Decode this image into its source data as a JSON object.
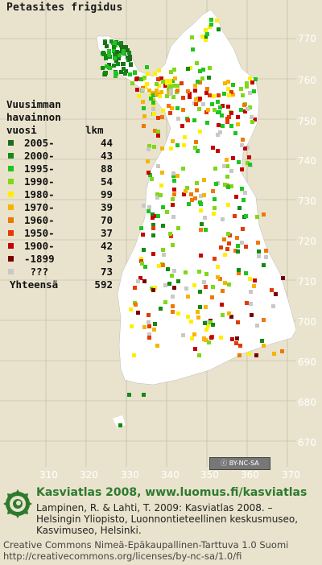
{
  "title": "Petasites frigidus",
  "legend": {
    "heading": [
      "Vuusimman",
      "havainnon"
    ],
    "col_vuosi": "vuosi",
    "col_lkm": "lkm",
    "rows": [
      {
        "label": "2005-",
        "count": "44",
        "color": "#1e6b1e"
      },
      {
        "label": "2000-",
        "count": "43",
        "color": "#138a13"
      },
      {
        "label": "1995-",
        "count": "88",
        "color": "#1fc41f"
      },
      {
        "label": "1990-",
        "count": "54",
        "color": "#7fd818"
      },
      {
        "label": "1980-",
        "count": "99",
        "color": "#ffee00"
      },
      {
        "label": "1970-",
        "count": "39",
        "color": "#f6b400"
      },
      {
        "label": "1960-",
        "count": "70",
        "color": "#f07800"
      },
      {
        "label": "1950-",
        "count": "37",
        "color": "#e43a00"
      },
      {
        "label": "1900-",
        "count": "42",
        "color": "#c80000"
      },
      {
        "label": "-1899",
        "count": "3",
        "color": "#7a0000"
      },
      {
        "label": " ???",
        "count": "73",
        "color": "#c8c8c8"
      }
    ],
    "total_label": "Yhteensä",
    "total_count": "592"
  },
  "grid_y_labels": [
    "770",
    "760",
    "750",
    "740",
    "730",
    "720",
    "710",
    "700",
    "690",
    "680",
    "670"
  ],
  "grid_x_labels": [
    "310",
    "320",
    "330",
    "340",
    "350",
    "360",
    "370"
  ],
  "cc_badge": "BY-NC-SA",
  "footer": {
    "title": "Kasviatlas 2008, www.luomus.fi/kasviatlas",
    "citation": "Lampinen, R. & Lahti, T. 2009: Kasviatlas 2008. –\nHelsingin Yliopisto, Luonnontieteellinen keskusmuseo,\nKasvimuseo, Helsinki.",
    "license": "Creative Commons Nimeä-Epäkaupallinen-Tarttuva 1.0 Suomi\nhttp://creativecommons.org/licenses/by-nc-sa/1.0/fi"
  },
  "colors": {
    "background": "#e9e3cd",
    "land": "#ffffff",
    "grid": "#b9b4a0",
    "footer_green": "#2e7a2e"
  }
}
